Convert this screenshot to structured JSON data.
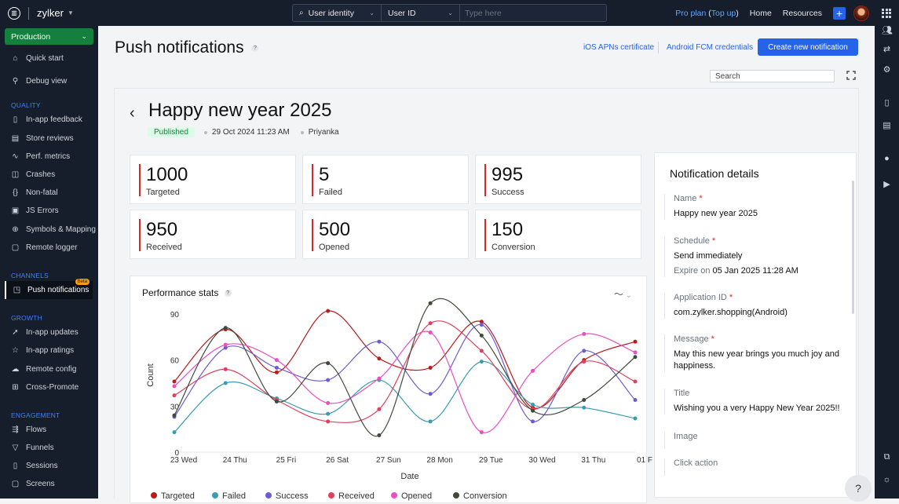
{
  "topbar": {
    "brand": "zylker",
    "search_segments": [
      "User identity",
      "User ID"
    ],
    "search_placeholder": "Type here",
    "plan_label": "Pro plan",
    "topup_label": "Top up",
    "links": [
      "Home",
      "Resources"
    ]
  },
  "sidebar": {
    "environment": "Production",
    "top_items": [
      {
        "label": "Quick start",
        "icon": "home-icon"
      },
      {
        "label": "Debug view",
        "icon": "pin-icon"
      }
    ],
    "sections": [
      {
        "title": "QUALITY",
        "items": [
          "In-app feedback",
          "Store reviews",
          "Perf. metrics",
          "Crashes",
          "Non-fatal",
          "JS Errors",
          "Symbols & Mapping",
          "Remote logger"
        ]
      },
      {
        "title": "CHANNELS",
        "items": [
          "Push notifications"
        ],
        "active": "Push notifications",
        "badge": "Beta"
      },
      {
        "title": "GROWTH",
        "items": [
          "In-app updates",
          "In-app ratings",
          "Remote config",
          "Cross-Promote"
        ]
      },
      {
        "title": "ENGAGEMENT",
        "items": [
          "Flows",
          "Funnels",
          "Sessions",
          "Screens"
        ]
      }
    ]
  },
  "header": {
    "title": "Push notifications",
    "ios_link": "iOS APNs certificate",
    "android_link": "Android FCM credentials",
    "create_button": "Create new notification",
    "search_placeholder": "Search"
  },
  "notification": {
    "title": "Happy new year 2025",
    "status": "Published",
    "date": "29 Oct 2024 11:23 AM",
    "author": "Priyanka"
  },
  "stats": [
    {
      "value": "1000",
      "label": "Targeted"
    },
    {
      "value": "5",
      "label": "Failed"
    },
    {
      "value": "995",
      "label": "Success"
    },
    {
      "value": "950",
      "label": "Received"
    },
    {
      "value": "500",
      "label": "Opened"
    },
    {
      "value": "150",
      "label": "Conversion"
    }
  ],
  "performance": {
    "title": "Performance stats"
  },
  "chart_data": {
    "type": "line",
    "xlabel": "Date",
    "ylabel": "Count",
    "ylim": [
      0,
      90
    ],
    "yticks": [
      0,
      30,
      60,
      90
    ],
    "categories": [
      "23 Wed",
      "24 Thu",
      "25 Fri",
      "26 Sat",
      "27 Sun",
      "28 Mon",
      "29 Tue",
      "30 Wed",
      "31 Thu",
      "01 F"
    ],
    "series": [
      {
        "name": "Targeted",
        "color": "#b91c1c",
        "values": [
          46,
          80,
          52,
          92,
          61,
          55,
          85,
          29,
          60,
          72
        ]
      },
      {
        "name": "Failed",
        "color": "#3b9cb0",
        "values": [
          13,
          45,
          35,
          25,
          47,
          20,
          59,
          31,
          29,
          22
        ]
      },
      {
        "name": "Success",
        "color": "#6d5bd0",
        "values": [
          23,
          68,
          55,
          47,
          72,
          38,
          83,
          20,
          66,
          34
        ]
      },
      {
        "name": "Received",
        "color": "#e0405e",
        "values": [
          37,
          54,
          34,
          20,
          28,
          84,
          66,
          28,
          59,
          46
        ]
      },
      {
        "name": "Opened",
        "color": "#e94fc0",
        "values": [
          43,
          70,
          60,
          32,
          48,
          78,
          13,
          53,
          77,
          65
        ]
      },
      {
        "name": "Conversion",
        "color": "#3f4a3a",
        "values": [
          24,
          81,
          33,
          58,
          11,
          97,
          76,
          27,
          34,
          62
        ]
      }
    ],
    "legend": "bottom"
  },
  "details": {
    "title": "Notification details",
    "name_label": "Name",
    "name_value": "Happy new year 2025",
    "schedule_label": "Schedule",
    "schedule_value": "Send immediately",
    "expire_label": "Expire on",
    "expire_value": "05 Jan 2025 11:28 AM",
    "app_label": "Application ID",
    "app_value": "com.zylker.shopping(Android)",
    "message_label": "Message",
    "message_value": "May this new year brings you much joy and happiness.",
    "title_label": "Title",
    "title_value": "Wishing you a very Happy New Year 2025!!",
    "image_label": "Image",
    "click_label": "Click action"
  },
  "help_label": "?"
}
